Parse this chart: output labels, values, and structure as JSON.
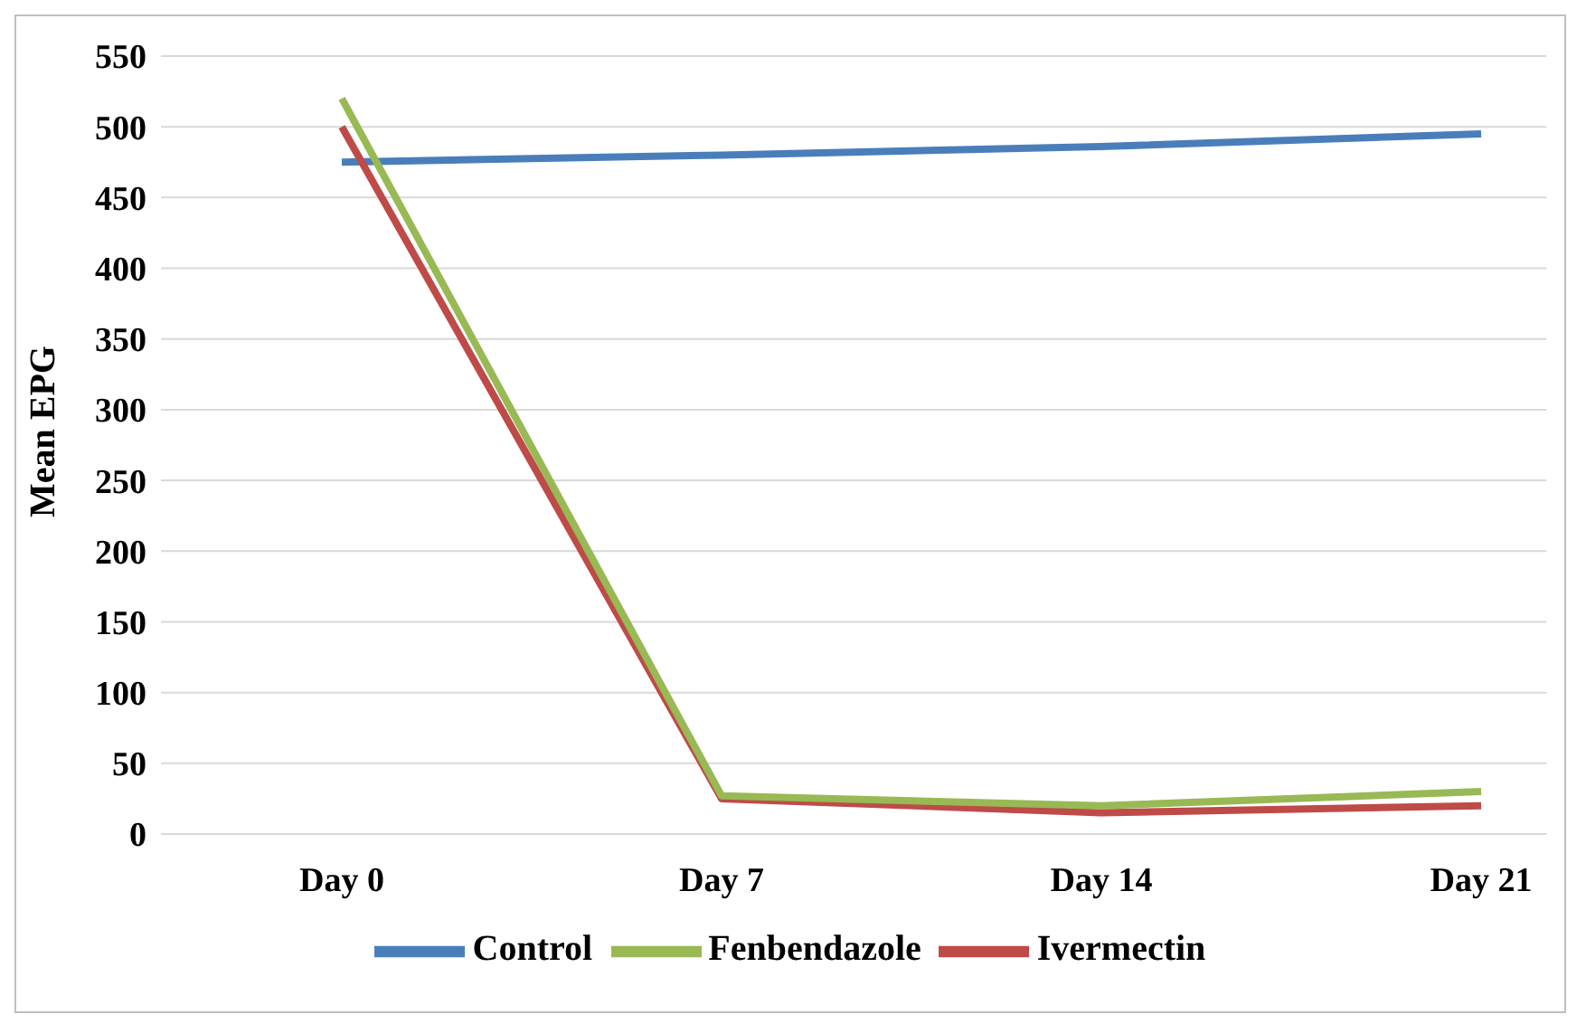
{
  "chart_data": {
    "type": "line",
    "ylabel": "Mean EPG",
    "categories": [
      "Day 0",
      "Day 7",
      "Day 14",
      "Day 21"
    ],
    "series": [
      {
        "name": "Control",
        "color": "#4a7ebb",
        "values": [
          475,
          480,
          486,
          495
        ]
      },
      {
        "name": "Ivermectin",
        "color": "#be4b48",
        "values": [
          500,
          25,
          15,
          20
        ]
      },
      {
        "name": "Fenbendazole",
        "color": "#98b954",
        "values": [
          520,
          27,
          20,
          30
        ]
      }
    ],
    "ylim": [
      0,
      550
    ],
    "yticks": [
      0,
      50,
      100,
      150,
      200,
      250,
      300,
      350,
      400,
      450,
      500,
      550
    ],
    "grid": "y",
    "legend": "bottom",
    "marker": "none",
    "line_style": "solid"
  }
}
